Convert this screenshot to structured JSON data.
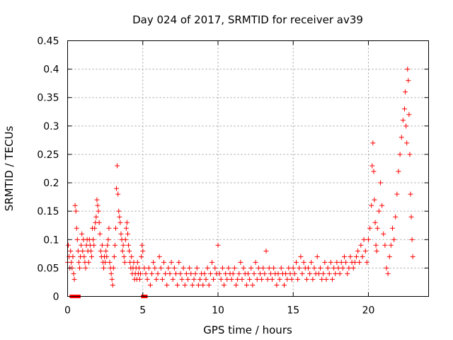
{
  "chart_data": {
    "type": "scatter",
    "title": "Day 024 of 2017, SRMTID for receiver av39",
    "xlabel": "GPS time / hours",
    "ylabel": "SRMTID / TECUs",
    "xlim": [
      0,
      24
    ],
    "ylim": [
      0,
      0.45
    ],
    "xticks": [
      0,
      5,
      10,
      15,
      20
    ],
    "xtick_labels": [
      "0",
      "5",
      "10",
      "15",
      "20"
    ],
    "yticks": [
      0,
      0.05,
      0.1,
      0.15,
      0.2,
      0.25,
      0.3,
      0.35,
      0.4,
      0.45
    ],
    "ytick_labels": [
      "0",
      "0.05",
      "0.1",
      "0.15",
      "0.2",
      "0.25",
      "0.3",
      "0.35",
      "0.4",
      "0.45"
    ],
    "grid": true,
    "marker": "+",
    "color": "#ff0000",
    "series": [
      {
        "name": "av39",
        "points": [
          [
            0.0,
            0.06
          ],
          [
            0.05,
            0.09
          ],
          [
            0.1,
            0.07
          ],
          [
            0.15,
            0.05
          ],
          [
            0.2,
            0.08
          ],
          [
            0.25,
            0.06
          ],
          [
            0.3,
            0.05
          ],
          [
            0.35,
            0.07
          ],
          [
            0.4,
            0.04
          ],
          [
            0.45,
            0.03
          ],
          [
            0.5,
            0.16
          ],
          [
            0.55,
            0.15
          ],
          [
            0.6,
            0.12
          ],
          [
            0.65,
            0.1
          ],
          [
            0.7,
            0.08
          ],
          [
            0.75,
            0.06
          ],
          [
            0.8,
            0.05
          ],
          [
            0.85,
            0.07
          ],
          [
            0.9,
            0.09
          ],
          [
            0.95,
            0.11
          ],
          [
            1.0,
            0.08
          ],
          [
            1.05,
            0.1
          ],
          [
            1.1,
            0.07
          ],
          [
            1.15,
            0.06
          ],
          [
            1.2,
            0.05
          ],
          [
            1.25,
            0.09
          ],
          [
            1.3,
            0.1
          ],
          [
            1.35,
            0.08
          ],
          [
            1.4,
            0.06
          ],
          [
            1.45,
            0.1
          ],
          [
            1.5,
            0.09
          ],
          [
            1.55,
            0.08
          ],
          [
            1.6,
            0.07
          ],
          [
            1.65,
            0.12
          ],
          [
            1.7,
            0.1
          ],
          [
            1.75,
            0.09
          ],
          [
            1.8,
            0.12
          ],
          [
            1.85,
            0.13
          ],
          [
            1.9,
            0.14
          ],
          [
            1.95,
            0.17
          ],
          [
            2.0,
            0.16
          ],
          [
            2.05,
            0.15
          ],
          [
            2.1,
            0.13
          ],
          [
            2.15,
            0.11
          ],
          [
            2.2,
            0.08
          ],
          [
            2.25,
            0.07
          ],
          [
            2.3,
            0.09
          ],
          [
            2.35,
            0.06
          ],
          [
            2.4,
            0.05
          ],
          [
            2.45,
            0.07
          ],
          [
            2.5,
            0.06
          ],
          [
            2.55,
            0.08
          ],
          [
            2.6,
            0.07
          ],
          [
            2.65,
            0.09
          ],
          [
            2.7,
            0.1
          ],
          [
            2.75,
            0.12
          ],
          [
            2.8,
            0.06
          ],
          [
            2.85,
            0.05
          ],
          [
            2.9,
            0.04
          ],
          [
            2.95,
            0.03
          ],
          [
            3.0,
            0.02
          ],
          [
            3.05,
            0.05
          ],
          [
            3.1,
            0.07
          ],
          [
            3.15,
            0.09
          ],
          [
            3.2,
            0.12
          ],
          [
            3.25,
            0.19
          ],
          [
            3.3,
            0.23
          ],
          [
            3.35,
            0.18
          ],
          [
            3.4,
            0.15
          ],
          [
            3.45,
            0.14
          ],
          [
            3.5,
            0.13
          ],
          [
            3.55,
            0.11
          ],
          [
            3.6,
            0.1
          ],
          [
            3.65,
            0.08
          ],
          [
            3.7,
            0.09
          ],
          [
            3.75,
            0.07
          ],
          [
            3.8,
            0.06
          ],
          [
            3.85,
            0.1
          ],
          [
            3.9,
            0.12
          ],
          [
            3.95,
            0.13
          ],
          [
            4.0,
            0.11
          ],
          [
            4.05,
            0.09
          ],
          [
            4.1,
            0.08
          ],
          [
            4.15,
            0.06
          ],
          [
            4.2,
            0.05
          ],
          [
            4.25,
            0.07
          ],
          [
            4.3,
            0.04
          ],
          [
            4.35,
            0.05
          ],
          [
            4.4,
            0.06
          ],
          [
            4.45,
            0.03
          ],
          [
            4.5,
            0.04
          ],
          [
            4.55,
            0.05
          ],
          [
            4.6,
            0.03
          ],
          [
            4.65,
            0.06
          ],
          [
            4.7,
            0.04
          ],
          [
            4.75,
            0.05
          ],
          [
            4.8,
            0.03
          ],
          [
            4.85,
            0.04
          ],
          [
            4.9,
            0.07
          ],
          [
            4.95,
            0.09
          ],
          [
            5.0,
            0.08
          ],
          [
            5.1,
            0.05
          ],
          [
            5.2,
            0.04
          ],
          [
            5.3,
            0.03
          ],
          [
            5.4,
            0.05
          ],
          [
            5.5,
            0.02
          ],
          [
            5.6,
            0.04
          ],
          [
            5.7,
            0.06
          ],
          [
            5.8,
            0.05
          ],
          [
            5.9,
            0.03
          ],
          [
            6.0,
            0.04
          ],
          [
            6.1,
            0.07
          ],
          [
            6.2,
            0.05
          ],
          [
            6.3,
            0.03
          ],
          [
            6.4,
            0.06
          ],
          [
            6.5,
            0.04
          ],
          [
            6.6,
            0.02
          ],
          [
            6.7,
            0.05
          ],
          [
            6.8,
            0.04
          ],
          [
            6.9,
            0.06
          ],
          [
            7.0,
            0.03
          ],
          [
            7.1,
            0.05
          ],
          [
            7.2,
            0.04
          ],
          [
            7.3,
            0.02
          ],
          [
            7.4,
            0.06
          ],
          [
            7.5,
            0.04
          ],
          [
            7.6,
            0.03
          ],
          [
            7.7,
            0.05
          ],
          [
            7.8,
            0.02
          ],
          [
            7.9,
            0.04
          ],
          [
            8.0,
            0.03
          ],
          [
            8.1,
            0.05
          ],
          [
            8.2,
            0.04
          ],
          [
            8.3,
            0.02
          ],
          [
            8.4,
            0.03
          ],
          [
            8.5,
            0.04
          ],
          [
            8.6,
            0.05
          ],
          [
            8.7,
            0.02
          ],
          [
            8.8,
            0.03
          ],
          [
            8.9,
            0.04
          ],
          [
            9.0,
            0.02
          ],
          [
            9.1,
            0.04
          ],
          [
            9.2,
            0.03
          ],
          [
            9.3,
            0.05
          ],
          [
            9.4,
            0.02
          ],
          [
            9.5,
            0.04
          ],
          [
            9.6,
            0.06
          ],
          [
            9.7,
            0.03
          ],
          [
            9.8,
            0.05
          ],
          [
            9.9,
            0.04
          ],
          [
            10.0,
            0.09
          ],
          [
            10.1,
            0.04
          ],
          [
            10.2,
            0.03
          ],
          [
            10.3,
            0.05
          ],
          [
            10.4,
            0.02
          ],
          [
            10.5,
            0.04
          ],
          [
            10.6,
            0.03
          ],
          [
            10.7,
            0.05
          ],
          [
            10.8,
            0.04
          ],
          [
            10.9,
            0.03
          ],
          [
            11.0,
            0.04
          ],
          [
            11.1,
            0.05
          ],
          [
            11.2,
            0.02
          ],
          [
            11.3,
            0.03
          ],
          [
            11.4,
            0.04
          ],
          [
            11.5,
            0.06
          ],
          [
            11.6,
            0.03
          ],
          [
            11.7,
            0.05
          ],
          [
            11.8,
            0.04
          ],
          [
            11.9,
            0.02
          ],
          [
            12.0,
            0.04
          ],
          [
            12.1,
            0.03
          ],
          [
            12.2,
            0.05
          ],
          [
            12.3,
            0.02
          ],
          [
            12.4,
            0.04
          ],
          [
            12.5,
            0.06
          ],
          [
            12.6,
            0.03
          ],
          [
            12.7,
            0.05
          ],
          [
            12.8,
            0.04
          ],
          [
            12.9,
            0.03
          ],
          [
            13.0,
            0.05
          ],
          [
            13.1,
            0.04
          ],
          [
            13.2,
            0.08
          ],
          [
            13.3,
            0.03
          ],
          [
            13.4,
            0.05
          ],
          [
            13.5,
            0.04
          ],
          [
            13.6,
            0.03
          ],
          [
            13.7,
            0.05
          ],
          [
            13.8,
            0.04
          ],
          [
            13.9,
            0.02
          ],
          [
            14.0,
            0.04
          ],
          [
            14.1,
            0.03
          ],
          [
            14.2,
            0.05
          ],
          [
            14.3,
            0.04
          ],
          [
            14.4,
            0.02
          ],
          [
            14.5,
            0.04
          ],
          [
            14.6,
            0.03
          ],
          [
            14.7,
            0.05
          ],
          [
            14.8,
            0.04
          ],
          [
            14.9,
            0.03
          ],
          [
            15.0,
            0.05
          ],
          [
            15.1,
            0.04
          ],
          [
            15.2,
            0.06
          ],
          [
            15.3,
            0.03
          ],
          [
            15.4,
            0.05
          ],
          [
            15.5,
            0.07
          ],
          [
            15.6,
            0.04
          ],
          [
            15.7,
            0.06
          ],
          [
            15.8,
            0.05
          ],
          [
            15.9,
            0.03
          ],
          [
            16.0,
            0.05
          ],
          [
            16.1,
            0.04
          ],
          [
            16.2,
            0.06
          ],
          [
            16.3,
            0.03
          ],
          [
            16.4,
            0.05
          ],
          [
            16.5,
            0.04
          ],
          [
            16.6,
            0.07
          ],
          [
            16.7,
            0.04
          ],
          [
            16.8,
            0.05
          ],
          [
            16.9,
            0.03
          ],
          [
            17.0,
            0.04
          ],
          [
            17.1,
            0.06
          ],
          [
            17.2,
            0.03
          ],
          [
            17.3,
            0.05
          ],
          [
            17.4,
            0.04
          ],
          [
            17.5,
            0.06
          ],
          [
            17.6,
            0.03
          ],
          [
            17.7,
            0.05
          ],
          [
            17.8,
            0.04
          ],
          [
            17.9,
            0.06
          ],
          [
            18.0,
            0.05
          ],
          [
            18.1,
            0.04
          ],
          [
            18.2,
            0.06
          ],
          [
            18.3,
            0.05
          ],
          [
            18.4,
            0.07
          ],
          [
            18.5,
            0.06
          ],
          [
            18.6,
            0.04
          ],
          [
            18.7,
            0.05
          ],
          [
            18.8,
            0.07
          ],
          [
            18.9,
            0.06
          ],
          [
            19.0,
            0.05
          ],
          [
            19.1,
            0.06
          ],
          [
            19.2,
            0.07
          ],
          [
            19.3,
            0.08
          ],
          [
            19.4,
            0.06
          ],
          [
            19.5,
            0.09
          ],
          [
            19.6,
            0.07
          ],
          [
            19.7,
            0.1
          ],
          [
            19.8,
            0.08
          ],
          [
            19.9,
            0.06
          ],
          [
            20.0,
            0.1
          ],
          [
            20.1,
            0.12
          ],
          [
            20.2,
            0.16
          ],
          [
            20.25,
            0.23
          ],
          [
            20.3,
            0.27
          ],
          [
            20.35,
            0.22
          ],
          [
            20.4,
            0.17
          ],
          [
            20.45,
            0.13
          ],
          [
            20.5,
            0.09
          ],
          [
            20.55,
            0.08
          ],
          [
            20.6,
            0.12
          ],
          [
            20.7,
            0.15
          ],
          [
            20.8,
            0.2
          ],
          [
            20.9,
            0.16
          ],
          [
            21.0,
            0.11
          ],
          [
            21.1,
            0.09
          ],
          [
            21.2,
            0.05
          ],
          [
            21.3,
            0.04
          ],
          [
            21.4,
            0.07
          ],
          [
            21.5,
            0.09
          ],
          [
            21.6,
            0.12
          ],
          [
            21.7,
            0.1
          ],
          [
            21.8,
            0.14
          ],
          [
            21.9,
            0.18
          ],
          [
            22.0,
            0.22
          ],
          [
            22.1,
            0.25
          ],
          [
            22.2,
            0.28
          ],
          [
            22.3,
            0.31
          ],
          [
            22.4,
            0.33
          ],
          [
            22.45,
            0.36
          ],
          [
            22.5,
            0.3
          ],
          [
            22.55,
            0.27
          ],
          [
            22.6,
            0.4
          ],
          [
            22.65,
            0.38
          ],
          [
            22.7,
            0.32
          ],
          [
            22.75,
            0.25
          ],
          [
            22.8,
            0.18
          ],
          [
            22.85,
            0.14
          ],
          [
            22.9,
            0.1
          ],
          [
            22.95,
            0.07
          ]
        ],
        "zero_points": [
          0.3,
          0.4,
          0.6,
          0.7,
          5.05,
          5.15
        ]
      }
    ]
  }
}
